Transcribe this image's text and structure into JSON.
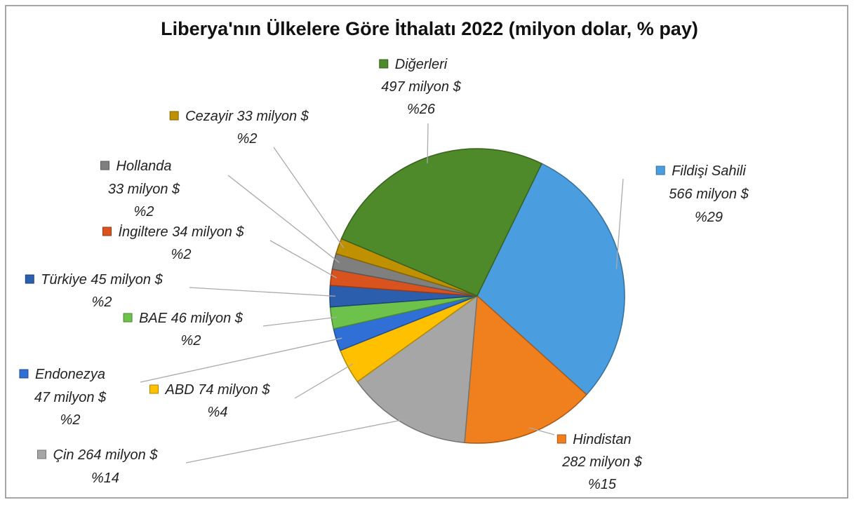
{
  "chart_data": {
    "type": "pie",
    "title": "Liberya'nın Ülkelere Göre İthalatı 2022 (milyon dolar, % pay)",
    "categories": [
      "Fildişi Sahili",
      "Hindistan",
      "Çin",
      "ABD",
      "Endonezya",
      "BAE",
      "Türkiye",
      "İngiltere",
      "Hollanda",
      "Cezayir",
      "Diğerleri"
    ],
    "values": [
      566,
      282,
      264,
      74,
      47,
      46,
      45,
      34,
      33,
      33,
      497
    ],
    "value_labels": [
      "566 milyon $",
      "282 milyon $",
      "264 milyon $",
      "74 milyon $",
      "47 milyon $",
      "46 milyon $",
      "45 milyon $",
      "34 milyon $",
      "33 milyon $",
      "33 milyon $",
      "497 milyon $"
    ],
    "shares": [
      29,
      15,
      14,
      4,
      2,
      2,
      2,
      2,
      2,
      2,
      26
    ],
    "share_labels": [
      "%29",
      "%15",
      "%14",
      "%4",
      "%2",
      "%2",
      "%2",
      "%2",
      "%2",
      "%2",
      "%26"
    ],
    "colors": [
      "#4a9ee0",
      "#f07f1e",
      "#a6a6a6",
      "#ffc000",
      "#2f6fd6",
      "#6cc24a",
      "#2b5fae",
      "#d9531e",
      "#7f7f7f",
      "#bf9000",
      "#4e8a2a"
    ]
  }
}
